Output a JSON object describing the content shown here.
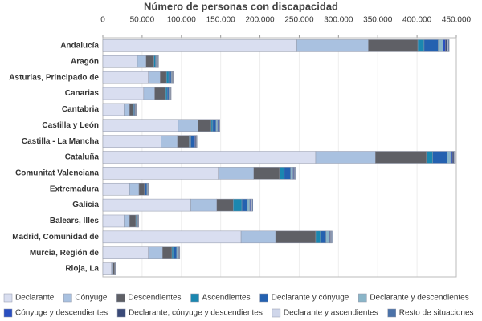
{
  "chart_data": {
    "type": "stacked-barh",
    "title": "Número de personas con discapacidad",
    "categories": [
      "Andalucía",
      "Aragón",
      "Asturias, Principado de",
      "Canarias",
      "Cantabria",
      "Castilla y León",
      "Castilla - La Mancha",
      "Cataluña",
      "Comunitat Valenciana",
      "Extremadura",
      "Galicia",
      "Balears, Illes",
      "Madrid, Comunidad de",
      "Murcia, Región de",
      "Rioja, La"
    ],
    "series": [
      {
        "name": "Declarante",
        "color": "#d9def0",
        "values": [
          247000,
          44000,
          58000,
          52000,
          27000,
          96000,
          74000,
          271000,
          147000,
          34000,
          112000,
          27000,
          176000,
          58000,
          11000
        ]
      },
      {
        "name": "Cónyuge",
        "color": "#a9c1e0",
        "values": [
          91000,
          11000,
          15000,
          14000,
          7000,
          25000,
          21000,
          76000,
          45000,
          12000,
          33000,
          7000,
          44000,
          18000,
          2000
        ]
      },
      {
        "name": "Descendientes",
        "color": "#5f6066",
        "values": [
          63000,
          10000,
          8000,
          14000,
          5000,
          17000,
          15000,
          65000,
          33000,
          7000,
          21000,
          8000,
          51000,
          12000,
          2000
        ]
      },
      {
        "name": "Ascendientes",
        "color": "#1a87b0",
        "values": [
          8000,
          2000,
          3000,
          2000,
          1000,
          2000,
          2000,
          8000,
          6000,
          1000,
          11000,
          1000,
          6000,
          2000,
          500
        ]
      },
      {
        "name": "Declarante y cónyuge",
        "color": "#2461b0",
        "values": [
          18000,
          1000,
          3000,
          2000,
          1000,
          4000,
          4000,
          18000,
          8000,
          2000,
          7000,
          1000,
          7000,
          4000,
          500
        ]
      },
      {
        "name": "Declarante y descendientes",
        "color": "#8ab5c8",
        "values": [
          6000,
          1000,
          1000,
          1000,
          500,
          2000,
          1000,
          5000,
          3000,
          1000,
          3000,
          500,
          4000,
          2000,
          300
        ]
      },
      {
        "name": "Cónyuge y descendientes",
        "color": "#2a4fc0",
        "values": [
          3000,
          500,
          500,
          500,
          300,
          1000,
          1000,
          2000,
          1000,
          500,
          1000,
          300,
          1000,
          500,
          200
        ]
      },
      {
        "name": "Declarante, cónyuge y descendientes",
        "color": "#3a4a78",
        "values": [
          3000,
          500,
          500,
          500,
          300,
          1000,
          1000,
          2000,
          1000,
          500,
          1000,
          300,
          1000,
          500,
          200
        ]
      },
      {
        "name": "Declarante y ascendientes",
        "color": "#cfd6ea",
        "values": [
          1000,
          500,
          500,
          500,
          300,
          500,
          500,
          1000,
          1000,
          500,
          1000,
          300,
          1000,
          500,
          200
        ]
      },
      {
        "name": "Resto de situaciones",
        "color": "#4b72a8",
        "values": [
          1000,
          500,
          500,
          500,
          300,
          500,
          500,
          1000,
          1000,
          500,
          1000,
          300,
          1000,
          500,
          200
        ]
      }
    ],
    "xlim": [
      0,
      450000
    ],
    "xticks": [
      0,
      {
        "value": 50000,
        "label": "50.000"
      },
      {
        "value": 100000,
        "label": "100.000"
      },
      {
        "value": 150000,
        "label": "150.000"
      },
      {
        "value": 200000,
        "label": "200.000"
      },
      {
        "value": 250000,
        "label": "250.000"
      },
      {
        "value": 300000,
        "label": "300.000"
      },
      {
        "value": 350000,
        "label": "350.000"
      },
      {
        "value": 400000,
        "label": "400.000"
      },
      {
        "value": 450000,
        "label": "450.000"
      }
    ],
    "grid": true
  }
}
